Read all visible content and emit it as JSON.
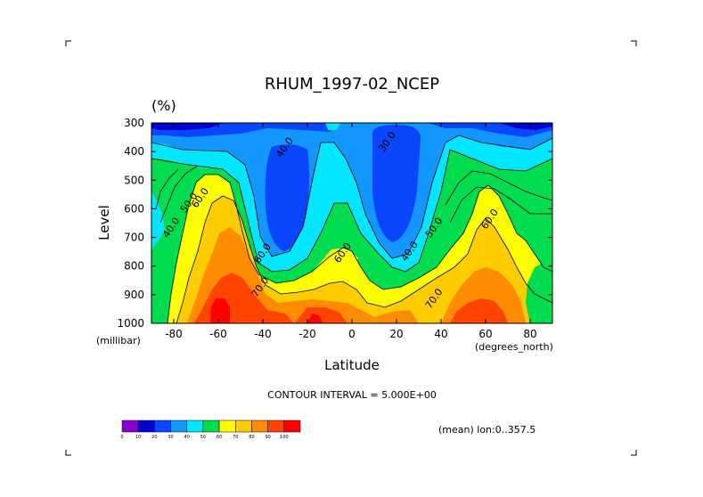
{
  "chart_data": {
    "type": "heatmap",
    "title": "RHUM_1997-02_NCEP",
    "units": "(%)",
    "xlabel": "Latitude",
    "xunit": "(degrees_north)",
    "ylabel": "Level",
    "yunit": "(millibar)",
    "xlim": [
      -90,
      90
    ],
    "ylim": [
      1000,
      300
    ],
    "x_ticks": [
      -80,
      -60,
      -40,
      -20,
      0,
      20,
      40,
      60,
      80
    ],
    "x_tick_labels": [
      "-80",
      "-60",
      "-40",
      "-20",
      "0",
      "20",
      "40",
      "60",
      "80"
    ],
    "y_ticks": [
      300,
      400,
      500,
      600,
      700,
      800,
      900,
      1000
    ],
    "y_tick_labels": [
      "300",
      "400",
      "500",
      "600",
      "700",
      "800",
      "900",
      "1000"
    ],
    "contour_interval_text": "CONTOUR INTERVAL = 5.000E+00",
    "mean_text": "(mean) lon:0..357.5",
    "contour_labels": [
      {
        "text": "40.0",
        "lat": -29,
        "lev": 392
      },
      {
        "text": "30.0",
        "lat": 17,
        "lev": 372
      },
      {
        "text": "50.0",
        "lat": -72,
        "lev": 585
      },
      {
        "text": "60.0",
        "lat": -67,
        "lev": 568
      },
      {
        "text": "40.0",
        "lat": -80,
        "lev": 672
      },
      {
        "text": "50.0",
        "lat": 38,
        "lev": 672
      },
      {
        "text": "60.0",
        "lat": 63,
        "lev": 642
      },
      {
        "text": "60.0",
        "lat": -39,
        "lev": 762
      },
      {
        "text": "60.0",
        "lat": -3,
        "lev": 760
      },
      {
        "text": "40.0",
        "lat": 27,
        "lev": 755
      },
      {
        "text": "70.0",
        "lat": -40,
        "lev": 880
      },
      {
        "text": "70.0",
        "lat": 38,
        "lev": 920
      }
    ],
    "colorbar": {
      "levels": [
        "0",
        "10",
        "20",
        "30",
        "40",
        "50",
        "60",
        "70",
        "80",
        "90",
        "100"
      ],
      "colors": [
        "#8800cc",
        "#0000cc",
        "#0a46ff",
        "#1496ff",
        "#00e6ff",
        "#00dc50",
        "#ffff00",
        "#ffcc00",
        "#ff8c00",
        "#ff4400",
        "#ff0000"
      ]
    }
  }
}
